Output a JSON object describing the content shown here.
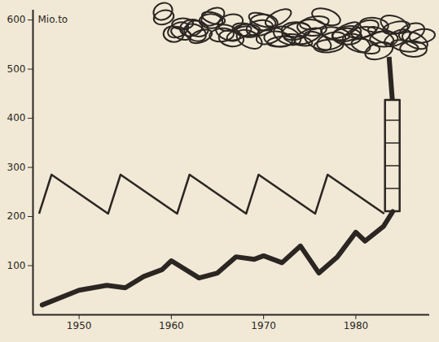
{
  "chart_data": {
    "type": "line",
    "y_label": "Mio.to",
    "x": [
      1946,
      1950,
      1953,
      1955,
      1957,
      1959,
      1960,
      1963,
      1965,
      1967,
      1969,
      1970,
      1972,
      1974,
      1976,
      1978,
      1980,
      1981,
      1983,
      1984
    ],
    "values": [
      20,
      50,
      60,
      55,
      78,
      92,
      110,
      75,
      85,
      118,
      113,
      120,
      106,
      140,
      85,
      118,
      168,
      150,
      180,
      210
    ],
    "color": "#2b2622",
    "xlim": [
      1945,
      1988
    ],
    "xticks": [
      1950,
      1960,
      1970,
      1980
    ],
    "ylim": [
      0,
      620
    ],
    "yticks": [
      100,
      200,
      300,
      400,
      500,
      600
    ],
    "grid": false
  }
}
